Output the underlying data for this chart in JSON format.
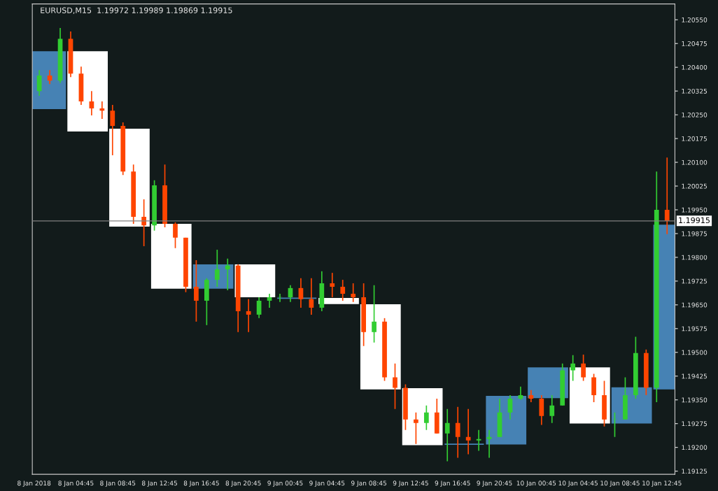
{
  "chart_data": {
    "type": "candlestick",
    "title": "EURUSD,M15  1.19972 1.19989 1.19869 1.19915",
    "x": [
      "2018-01-08T01:15",
      "2018-01-08T02:15",
      "2018-01-08T03:15",
      "2018-01-08T04:15",
      "2018-01-08T05:15",
      "2018-01-08T06:15",
      "2018-01-08T07:15",
      "2018-01-08T08:15",
      "2018-01-08T09:15",
      "2018-01-08T10:15",
      "2018-01-08T11:15",
      "2018-01-08T12:15",
      "2018-01-08T13:15",
      "2018-01-08T14:15",
      "2018-01-08T15:15",
      "2018-01-08T16:15",
      "2018-01-08T17:15",
      "2018-01-08T18:15",
      "2018-01-08T19:15",
      "2018-01-08T20:15",
      "2018-01-08T21:15",
      "2018-01-08T22:15",
      "2018-01-08T23:15",
      "2018-01-09T00:15",
      "2018-01-09T01:15",
      "2018-01-09T02:15",
      "2018-01-09T03:15",
      "2018-01-09T04:15",
      "2018-01-09T05:15",
      "2018-01-09T06:15",
      "2018-01-09T07:15",
      "2018-01-09T08:15",
      "2018-01-09T09:15",
      "2018-01-09T10:15",
      "2018-01-09T11:15",
      "2018-01-09T12:15",
      "2018-01-09T13:15",
      "2018-01-09T14:15",
      "2018-01-09T15:15",
      "2018-01-09T16:15",
      "2018-01-09T17:15",
      "2018-01-09T18:15",
      "2018-01-09T19:15",
      "2018-01-09T20:15",
      "2018-01-09T21:15",
      "2018-01-09T22:15",
      "2018-01-09T23:15",
      "2018-01-10T00:15",
      "2018-01-10T01:15",
      "2018-01-10T02:15",
      "2018-01-10T03:15",
      "2018-01-10T04:15",
      "2018-01-10T05:15",
      "2018-01-10T06:15",
      "2018-01-10T07:15",
      "2018-01-10T08:15",
      "2018-01-10T09:15",
      "2018-01-10T10:15",
      "2018-01-10T11:15",
      "2018-01-10T12:15",
      "2018-01-10T13:15"
    ],
    "ohlc": [
      [
        1.20325,
        1.20391,
        1.2031,
        1.20374
      ],
      [
        1.20374,
        1.20391,
        1.20347,
        1.20358
      ],
      [
        1.20358,
        1.20524,
        1.20351,
        1.2049
      ],
      [
        1.2049,
        1.20513,
        1.20369,
        1.2038
      ],
      [
        1.2038,
        1.20402,
        1.20281,
        1.20292
      ],
      [
        1.20292,
        1.20325,
        1.20248,
        1.2027
      ],
      [
        1.2027,
        1.20292,
        1.20237,
        1.20263
      ],
      [
        1.20263,
        1.20281,
        1.20122,
        1.20215
      ],
      [
        1.20215,
        1.20226,
        1.2006,
        1.20071
      ],
      [
        1.20071,
        1.20093,
        1.19906,
        1.19928
      ],
      [
        1.19928,
        1.19983,
        1.19835,
        1.19901
      ],
      [
        1.19901,
        1.20043,
        1.19884,
        1.20027
      ],
      [
        1.20027,
        1.20093,
        1.19895,
        1.19906
      ],
      [
        1.19906,
        1.1991,
        1.19829,
        1.19862
      ],
      [
        1.19862,
        1.19862,
        1.1969,
        1.19707
      ],
      [
        1.19707,
        1.19791,
        1.19597,
        1.19663
      ],
      [
        1.19663,
        1.19734,
        1.19586,
        1.19729
      ],
      [
        1.19729,
        1.19824,
        1.19707,
        1.19762
      ],
      [
        1.19762,
        1.19796,
        1.19696,
        1.19774
      ],
      [
        1.19774,
        1.19778,
        1.19564,
        1.1963
      ],
      [
        1.1963,
        1.19668,
        1.19564,
        1.19619
      ],
      [
        1.19619,
        1.19674,
        1.19608,
        1.19663
      ],
      [
        1.19663,
        1.19685,
        1.19641,
        1.19674
      ],
      [
        1.19674,
        1.19685,
        1.19659,
        1.19674
      ],
      [
        1.19674,
        1.19712,
        1.19659,
        1.19703
      ],
      [
        1.19703,
        1.19734,
        1.19641,
        1.19668
      ],
      [
        1.19668,
        1.19734,
        1.19619,
        1.19641
      ],
      [
        1.19641,
        1.19756,
        1.1963,
        1.19718
      ],
      [
        1.19718,
        1.19751,
        1.19674,
        1.19707
      ],
      [
        1.19707,
        1.19729,
        1.19663,
        1.19685
      ],
      [
        1.19685,
        1.19718,
        1.19659,
        1.19674
      ],
      [
        1.19674,
        1.19718,
        1.1952,
        1.19564
      ],
      [
        1.19564,
        1.19712,
        1.19531,
        1.19597
      ],
      [
        1.19597,
        1.19608,
        1.1941,
        1.19421
      ],
      [
        1.19421,
        1.19465,
        1.19321,
        1.19388
      ],
      [
        1.19388,
        1.19399,
        1.19255,
        1.19288
      ],
      [
        1.19288,
        1.1931,
        1.19211,
        1.19277
      ],
      [
        1.19277,
        1.19332,
        1.19255,
        1.1931
      ],
      [
        1.1931,
        1.19354,
        1.19244,
        1.19244
      ],
      [
        1.19244,
        1.19321,
        1.19156,
        1.19277
      ],
      [
        1.19277,
        1.19328,
        1.19167,
        1.19233
      ],
      [
        1.19233,
        1.19321,
        1.19178,
        1.19222
      ],
      [
        1.19222,
        1.19255,
        1.19189,
        1.19226
      ],
      [
        1.19226,
        1.19255,
        1.19167,
        1.19233
      ],
      [
        1.19233,
        1.19354,
        1.19233,
        1.1931
      ],
      [
        1.1931,
        1.19365,
        1.19288,
        1.19354
      ],
      [
        1.19354,
        1.19392,
        1.1935,
        1.19365
      ],
      [
        1.19365,
        1.19381,
        1.19343,
        1.19354
      ],
      [
        1.19354,
        1.19365,
        1.19271,
        1.19299
      ],
      [
        1.19299,
        1.19365,
        1.19277,
        1.19332
      ],
      [
        1.19332,
        1.19465,
        1.19332,
        1.19443
      ],
      [
        1.19443,
        1.19491,
        1.1941,
        1.19465
      ],
      [
        1.19465,
        1.19493,
        1.1941,
        1.19421
      ],
      [
        1.19421,
        1.19432,
        1.19343,
        1.19365
      ],
      [
        1.19365,
        1.1941,
        1.19266,
        1.19288
      ],
      [
        1.19288,
        1.1931,
        1.19233,
        1.19288
      ],
      [
        1.19288,
        1.19421,
        1.19288,
        1.19365
      ],
      [
        1.19365,
        1.19549,
        1.19354,
        1.19498
      ],
      [
        1.19498,
        1.19509,
        1.19365,
        1.19388
      ],
      [
        1.19388,
        1.20071,
        1.19343,
        1.1995
      ],
      [
        1.1995,
        1.20115,
        1.19873,
        1.19915
      ]
    ],
    "colors": [
      "#32cd32",
      "#ff4500",
      "#32cd32",
      "#ff4500",
      "#ff4500",
      "#ff4500",
      "#ff4500",
      "#ff4500",
      "#ff4500",
      "#ff4500",
      "#ff4500",
      "#32cd32",
      "#ff4500",
      "#ff4500",
      "#ff4500",
      "#ff4500",
      "#32cd32",
      "#32cd32",
      "#32cd32",
      "#ff4500",
      "#ff4500",
      "#32cd32",
      "#32cd32",
      "#32cd32",
      "#32cd32",
      "#ff4500",
      "#ff4500",
      "#32cd32",
      "#ff4500",
      "#ff4500",
      "#ff4500",
      "#ff4500",
      "#32cd32",
      "#ff4500",
      "#ff4500",
      "#ff4500",
      "#ff4500",
      "#32cd32",
      "#ff4500",
      "#32cd32",
      "#ff4500",
      "#ff4500",
      "#32cd32",
      "#32cd32",
      "#32cd32",
      "#32cd32",
      "#32cd32",
      "#ff4500",
      "#ff4500",
      "#32cd32",
      "#32cd32",
      "#32cd32",
      "#ff4500",
      "#ff4500",
      "#ff4500",
      "#32cd32",
      "#32cd32",
      "#32cd32",
      "#ff4500",
      "#32cd32",
      "#ff4500"
    ],
    "series": [
      {
        "type": "bar",
        "x": [
          "2018-01-08T01:52",
          "2018-01-08T05:52",
          "2018-01-08T09:52",
          "2018-01-08T13:52",
          "2018-01-08T17:52",
          "2018-01-08T21:52",
          "2018-01-09T01:52",
          "2018-01-09T05:52",
          "2018-01-09T09:52",
          "2018-01-09T13:52",
          "2018-01-09T17:52",
          "2018-01-09T21:52",
          "2018-01-10T01:52",
          "2018-01-10T05:52",
          "2018-01-10T09:52",
          "2018-01-10T13:52"
        ],
        "base": [
          1.2027,
          1.20199,
          1.19899,
          1.19703,
          1.19703,
          1.19676,
          1.19671,
          1.19654,
          1.19385,
          1.19209,
          1.1921,
          1.19211,
          1.19357,
          1.19277,
          1.19277,
          1.19385
        ],
        "values": [
          0.00179,
          0.0025,
          0.00305,
          0.00201,
          0.00073,
          0.001,
          0,
          0.00016,
          0.00265,
          0.00176,
          0,
          0.0015,
          0.00094,
          0.00174,
          0.00111,
          0.00516
        ],
        "colors": [
          "#4682b4",
          "#ffffff",
          "#ffffff",
          "#ffffff",
          "#4682b4",
          "#ffffff",
          "#4682b4",
          "#ffffff",
          "#ffffff",
          "#ffffff",
          "#4682b4",
          "#4682b4",
          "#4682b4",
          "#ffffff",
          "#4682b4",
          "#4682b4"
        ]
      }
    ],
    "xlim": [
      "2018-01-08T00:35",
      "2018-01-10T14:00"
    ],
    "xticks": [
      {
        "value": "2018-01-08T00:45",
        "label": "8 Jan 2018"
      },
      {
        "value": "2018-01-08T04:45",
        "label": "8 Jan 04:45"
      },
      {
        "value": "2018-01-08T08:45",
        "label": "8 Jan 08:45"
      },
      {
        "value": "2018-01-08T12:45",
        "label": "8 Jan 12:45"
      },
      {
        "value": "2018-01-08T16:45",
        "label": "8 Jan 16:45"
      },
      {
        "value": "2018-01-08T20:45",
        "label": "8 Jan 20:45"
      },
      {
        "value": "2018-01-09T00:45",
        "label": "9 Jan 00:45"
      },
      {
        "value": "2018-01-09T04:45",
        "label": "9 Jan 04:45"
      },
      {
        "value": "2018-01-09T08:45",
        "label": "9 Jan 08:45"
      },
      {
        "value": "2018-01-09T12:45",
        "label": "9 Jan 12:45"
      },
      {
        "value": "2018-01-09T16:45",
        "label": "9 Jan 16:45"
      },
      {
        "value": "2018-01-09T20:45",
        "label": "9 Jan 20:45"
      },
      {
        "value": "2018-01-10T00:45",
        "label": "10 Jan 00:45"
      },
      {
        "value": "2018-01-10T04:45",
        "label": "10 Jan 04:45"
      },
      {
        "value": "2018-01-10T08:45",
        "label": "10 Jan 08:45"
      },
      {
        "value": "2018-01-10T12:45",
        "label": "10 Jan 12:45"
      }
    ],
    "ylim": [
      1.19115,
      1.206
    ],
    "yticks": [
      {
        "value": 1.19125,
        "label": "1.19125"
      },
      {
        "value": 1.192,
        "label": "1.19200"
      },
      {
        "value": 1.19275,
        "label": "1.19275"
      },
      {
        "value": 1.1935,
        "label": "1.19350"
      },
      {
        "value": 1.19425,
        "label": "1.19425"
      },
      {
        "value": 1.195,
        "label": "1.19500"
      },
      {
        "value": 1.19575,
        "label": "1.19575"
      },
      {
        "value": 1.1965,
        "label": "1.19650"
      },
      {
        "value": 1.19725,
        "label": "1.19725"
      },
      {
        "value": 1.198,
        "label": "1.19800"
      },
      {
        "value": 1.19875,
        "label": "1.19875"
      },
      {
        "value": 1.1995,
        "label": "1.19950"
      },
      {
        "value": 1.20025,
        "label": "1.20025"
      },
      {
        "value": 1.201,
        "label": "1.20100"
      },
      {
        "value": 1.20175,
        "label": "1.20175"
      },
      {
        "value": 1.2025,
        "label": "1.20250"
      },
      {
        "value": 1.20325,
        "label": "1.20325"
      },
      {
        "value": 1.204,
        "label": "1.20400"
      },
      {
        "value": 1.20475,
        "label": "1.20475"
      },
      {
        "value": 1.2055,
        "label": "1.20550"
      }
    ],
    "ref_lines": [
      {
        "axis": "y",
        "value": 1.19915,
        "label": "1.19915",
        "color": "#808080"
      }
    ]
  }
}
